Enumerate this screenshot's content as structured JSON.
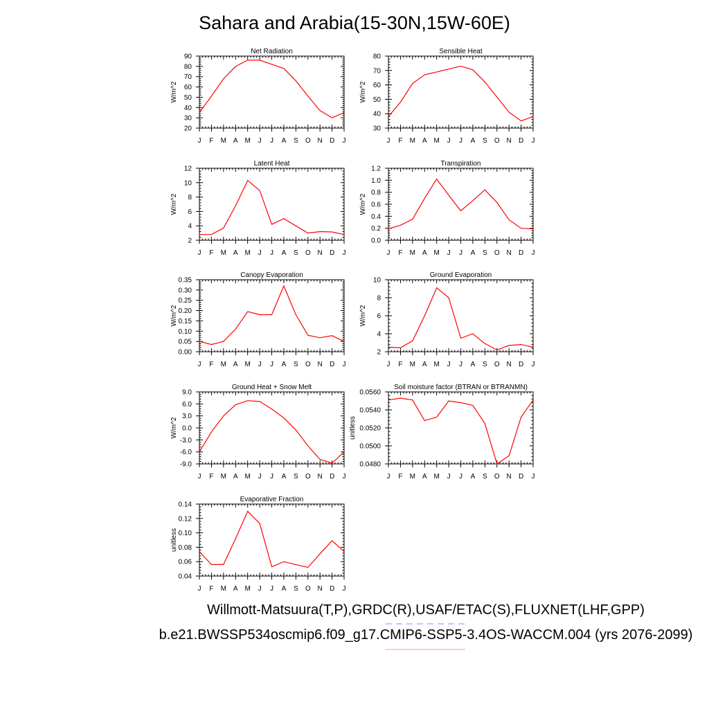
{
  "title": "Sahara and Arabia(15-30N,15W-60E)",
  "footer": {
    "line1": "Willmott-Matsuura(T,P),GRDC(R),USAF/ETAC(S),FLUXNET(LHF,GPP)",
    "line2": "b.e21.BWSSP534oscmip6.f09_g17.CMIP6-SSP5-3.4OS-WACCM.004 (yrs 2076-2099)"
  },
  "colors": {
    "line": "#ff0000",
    "legend_dash_blue": "#8a8aff",
    "legend_line_pink": "#ff9a9a"
  },
  "chart_data": [
    {
      "type": "line",
      "title": "Net Radiation",
      "ylabel": "W/m^2",
      "x": [
        "J",
        "F",
        "M",
        "A",
        "M",
        "J",
        "J",
        "A",
        "S",
        "O",
        "N",
        "D",
        "J"
      ],
      "values": [
        35,
        51,
        68,
        80,
        86,
        86,
        82,
        78,
        66,
        51,
        37,
        30,
        35
      ],
      "ylim": [
        20,
        90
      ],
      "yticks": [
        "20",
        "30",
        "40",
        "50",
        "60",
        "70",
        "80",
        "90"
      ]
    },
    {
      "type": "line",
      "title": "Sensible Heat",
      "ylabel": "W/m^2",
      "x": [
        "J",
        "F",
        "M",
        "A",
        "M",
        "J",
        "J",
        "A",
        "S",
        "O",
        "N",
        "D",
        "J"
      ],
      "values": [
        38,
        48,
        61,
        67,
        69,
        71,
        73,
        70.5,
        62,
        51.5,
        41,
        35,
        38
      ],
      "ylim": [
        30,
        80
      ],
      "yticks": [
        "30",
        "40",
        "50",
        "60",
        "70",
        "80"
      ]
    },
    {
      "type": "line",
      "title": "Latent Heat",
      "ylabel": "W/m^2",
      "x": [
        "J",
        "F",
        "M",
        "A",
        "M",
        "J",
        "J",
        "A",
        "S",
        "O",
        "N",
        "D",
        "J"
      ],
      "values": [
        2.8,
        2.8,
        3.7,
        6.8,
        10.3,
        8.9,
        4.2,
        5.0,
        4.0,
        3.0,
        3.2,
        3.15,
        2.8
      ],
      "ylim": [
        2,
        12
      ],
      "yticks": [
        "2",
        "4",
        "6",
        "8",
        "10",
        "12"
      ]
    },
    {
      "type": "line",
      "title": "Transpiration",
      "ylabel": "W/m^2",
      "x": [
        "J",
        "F",
        "M",
        "A",
        "M",
        "J",
        "J",
        "A",
        "S",
        "O",
        "N",
        "D",
        "J"
      ],
      "values": [
        0.19,
        0.25,
        0.35,
        0.7,
        1.02,
        0.75,
        0.49,
        0.66,
        0.84,
        0.63,
        0.34,
        0.2,
        0.19
      ],
      "ylim": [
        0,
        1.2
      ],
      "yticks": [
        "0.0",
        "0.2",
        "0.4",
        "0.6",
        "0.8",
        "1.0",
        "1.2"
      ]
    },
    {
      "type": "line",
      "title": "Canopy Evaporation",
      "ylabel": "W/m^2",
      "x": [
        "J",
        "F",
        "M",
        "A",
        "M",
        "J",
        "J",
        "A",
        "S",
        "O",
        "N",
        "D",
        "J"
      ],
      "values": [
        0.05,
        0.035,
        0.05,
        0.11,
        0.195,
        0.18,
        0.18,
        0.32,
        0.18,
        0.08,
        0.068,
        0.078,
        0.05
      ],
      "ylim": [
        0,
        0.35
      ],
      "yticks": [
        "0.00",
        "0.05",
        "0.10",
        "0.15",
        "0.20",
        "0.25",
        "0.30",
        "0.35"
      ]
    },
    {
      "type": "line",
      "title": "Ground Evaporation",
      "ylabel": "W/m^2",
      "x": [
        "J",
        "F",
        "M",
        "A",
        "M",
        "J",
        "J",
        "A",
        "S",
        "O",
        "N",
        "D",
        "J"
      ],
      "values": [
        2.5,
        2.45,
        3.2,
        6.0,
        9.1,
        8.0,
        3.5,
        4.0,
        2.9,
        2.2,
        2.7,
        2.8,
        2.5
      ],
      "ylim": [
        2,
        10
      ],
      "yticks": [
        "2",
        "4",
        "6",
        "8",
        "10"
      ]
    },
    {
      "type": "line",
      "title": "Ground Heat + Snow Melt",
      "ylabel": "W/m^2",
      "x": [
        "J",
        "F",
        "M",
        "A",
        "M",
        "J",
        "J",
        "A",
        "S",
        "O",
        "N",
        "D",
        "J"
      ],
      "values": [
        -6.0,
        -1.0,
        3.0,
        5.8,
        6.8,
        6.6,
        4.7,
        2.5,
        -0.5,
        -4.5,
        -7.9,
        -8.8,
        -6.0
      ],
      "ylim": [
        -9,
        9
      ],
      "yticks": [
        "-9.0",
        "-6.0",
        "-3.0",
        "0.0",
        "3.0",
        "6.0",
        "9.0"
      ]
    },
    {
      "type": "line",
      "title": "Soil moisture factor (BTRAN or BTRANMN)",
      "ylabel": "unitless",
      "x": [
        "J",
        "F",
        "M",
        "A",
        "M",
        "J",
        "J",
        "A",
        "S",
        "O",
        "N",
        "D",
        "J"
      ],
      "values": [
        0.0551,
        0.0553,
        0.0551,
        0.0528,
        0.0532,
        0.055,
        0.0548,
        0.0545,
        0.0525,
        0.048,
        0.0489,
        0.0532,
        0.0551
      ],
      "ylim": [
        0.048,
        0.056
      ],
      "yticks": [
        "0.0480",
        "0.0500",
        "0.0520",
        "0.0540",
        "0.0560"
      ]
    },
    {
      "type": "line",
      "title": "Evaporative Fraction",
      "ylabel": "unitless",
      "x": [
        "J",
        "F",
        "M",
        "A",
        "M",
        "J",
        "J",
        "A",
        "S",
        "O",
        "N",
        "D",
        "J"
      ],
      "values": [
        0.074,
        0.056,
        0.056,
        0.092,
        0.13,
        0.113,
        0.053,
        0.06,
        0.056,
        0.052,
        0.071,
        0.089,
        0.074
      ],
      "ylim": [
        0.04,
        0.14
      ],
      "yticks": [
        "0.04",
        "0.06",
        "0.08",
        "0.10",
        "0.12",
        "0.14"
      ]
    }
  ]
}
